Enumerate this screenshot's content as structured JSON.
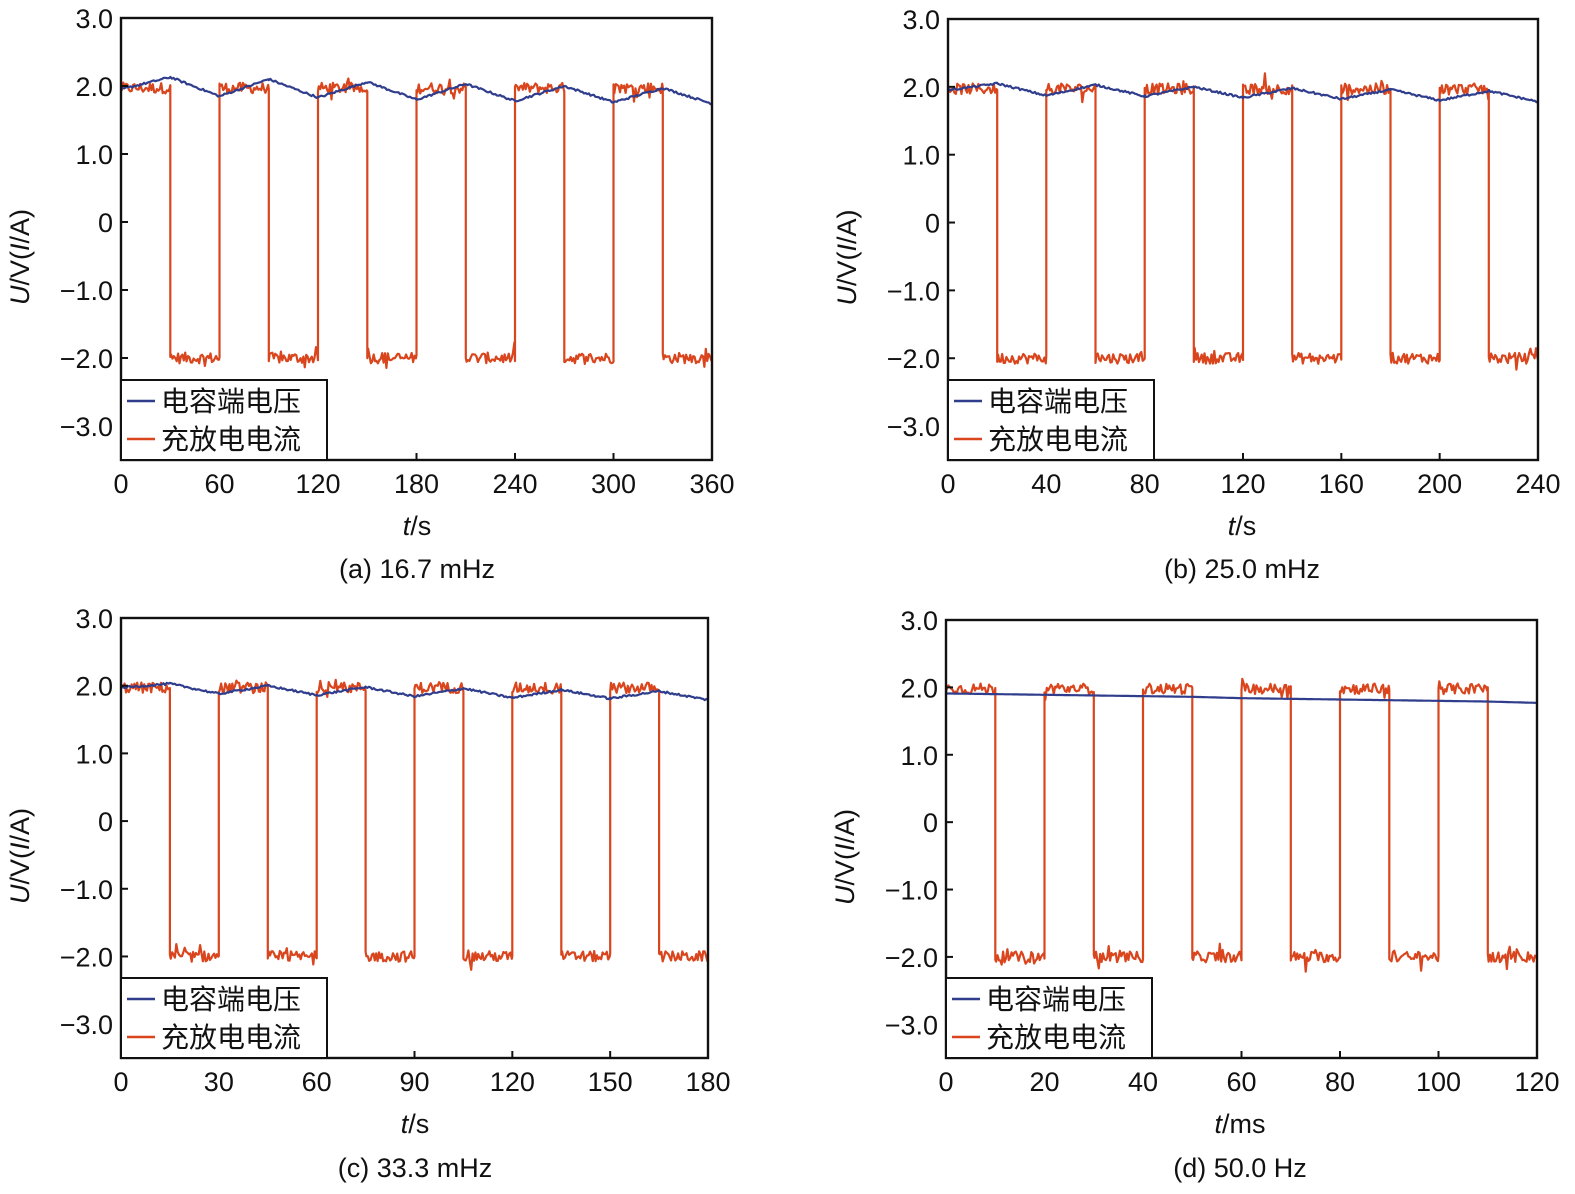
{
  "figure": {
    "colors": {
      "voltage": "#2f3d8c",
      "current": "#d9461e",
      "axis": "#111111"
    }
  },
  "chart_data": [
    {
      "type": "line",
      "panel": "a",
      "caption": "(a) 16.7 mHz",
      "xlabel_italic": "t",
      "xlabel_unit": "/s",
      "ylabel_italic_1": "U",
      "ylabel_mid": "/V(",
      "ylabel_italic_2": "I",
      "ylabel_tail": "/A)",
      "xlim": [
        0,
        360
      ],
      "ylim": [
        -3.5,
        3.0
      ],
      "xticks": [
        0,
        60,
        120,
        180,
        240,
        300,
        360
      ],
      "xtick_labels": [
        "0",
        "60",
        "120",
        "180",
        "240",
        "300",
        "360"
      ],
      "yticks": [
        3,
        2,
        1,
        0,
        -1,
        -2,
        -3
      ],
      "ytick_labels": [
        "3.0",
        "2.0",
        "1.0",
        "0",
        "−1.0",
        "−2.0",
        "−3.0"
      ],
      "legend": [
        "电容端电压",
        "充放电电流"
      ],
      "legend_position": "bottom-left",
      "series": [
        {
          "name": "电容端电压",
          "x": [
            0,
            30,
            60,
            90,
            120,
            150,
            180,
            210,
            240,
            270,
            300,
            330,
            360
          ],
          "y": [
            1.95,
            2.13,
            1.85,
            2.1,
            1.83,
            2.06,
            1.8,
            2.03,
            1.78,
            2.0,
            1.76,
            1.97,
            1.74
          ]
        },
        {
          "name": "充放电电流",
          "type": "square_wave",
          "high": 1.97,
          "low": -2.0,
          "x_start": 0,
          "x_end": 360,
          "transitions": [
            30,
            60,
            90,
            120,
            150,
            180,
            210,
            240,
            270,
            300,
            330
          ]
        }
      ]
    },
    {
      "type": "line",
      "panel": "b",
      "caption": "(b) 25.0 mHz",
      "xlabel_italic": "t",
      "xlabel_unit": "/s",
      "ylabel_italic_1": "U",
      "ylabel_mid": "/V(",
      "ylabel_italic_2": "I",
      "ylabel_tail": "/A)",
      "xlim": [
        0,
        240
      ],
      "ylim": [
        -3.5,
        3.0
      ],
      "xticks": [
        0,
        40,
        80,
        120,
        160,
        200,
        240
      ],
      "xtick_labels": [
        "0",
        "40",
        "80",
        "120",
        "160",
        "200",
        "240"
      ],
      "yticks": [
        3,
        2,
        1,
        0,
        -1,
        -2,
        -3
      ],
      "ytick_labels": [
        "3.0",
        "2.0",
        "1.0",
        "0",
        "−1.0",
        "−2.0",
        "−3.0"
      ],
      "legend": [
        "电容端电压",
        "充放电电流"
      ],
      "legend_position": "bottom-left",
      "series": [
        {
          "name": "电容端电压",
          "x": [
            0,
            20,
            40,
            60,
            80,
            100,
            120,
            140,
            160,
            180,
            200,
            220,
            240
          ],
          "y": [
            1.95,
            2.05,
            1.87,
            2.03,
            1.86,
            2.0,
            1.84,
            1.98,
            1.82,
            1.96,
            1.8,
            1.94,
            1.78
          ]
        },
        {
          "name": "充放电电流",
          "type": "square_wave",
          "high": 1.97,
          "low": -2.0,
          "x_start": 0,
          "x_end": 240,
          "transitions": [
            20,
            40,
            60,
            80,
            100,
            120,
            140,
            160,
            180,
            200,
            220
          ]
        }
      ]
    },
    {
      "type": "line",
      "panel": "c",
      "caption": "(c) 33.3 mHz",
      "xlabel_italic": "t",
      "xlabel_unit": "/s",
      "ylabel_italic_1": "U",
      "ylabel_mid": "/V(",
      "ylabel_italic_2": "I",
      "ylabel_tail": "/A)",
      "xlim": [
        0,
        180
      ],
      "ylim": [
        -3.5,
        3.0
      ],
      "xticks": [
        0,
        30,
        60,
        90,
        120,
        150,
        180
      ],
      "xtick_labels": [
        "0",
        "30",
        "60",
        "90",
        "120",
        "150",
        "180"
      ],
      "yticks": [
        3,
        2,
        1,
        0,
        -1,
        -2,
        -3
      ],
      "ytick_labels": [
        "3.0",
        "2.0",
        "1.0",
        "0",
        "−1.0",
        "−2.0",
        "−3.0"
      ],
      "legend": [
        "电容端电压",
        "充放电电流"
      ],
      "legend_position": "bottom-left",
      "series": [
        {
          "name": "电容端电压",
          "x": [
            0,
            15,
            30,
            45,
            60,
            75,
            90,
            105,
            120,
            135,
            150,
            165,
            180
          ],
          "y": [
            1.97,
            2.03,
            1.88,
            2.0,
            1.86,
            1.98,
            1.84,
            1.96,
            1.82,
            1.94,
            1.81,
            1.92,
            1.79
          ]
        },
        {
          "name": "充放电电流",
          "type": "square_wave",
          "high": 1.97,
          "low": -2.0,
          "x_start": 0,
          "x_end": 180,
          "transitions": [
            15,
            30,
            45,
            60,
            75,
            90,
            105,
            120,
            135,
            150,
            165
          ]
        }
      ]
    },
    {
      "type": "line",
      "panel": "d",
      "caption": "(d) 50.0 Hz",
      "xlabel_italic": "t",
      "xlabel_unit": "/ms",
      "ylabel_italic_1": "U",
      "ylabel_mid": "/V(",
      "ylabel_italic_2": "I",
      "ylabel_tail": "/A)",
      "xlim": [
        0,
        120
      ],
      "ylim": [
        -3.5,
        3.0
      ],
      "xticks": [
        0,
        20,
        40,
        60,
        80,
        100,
        120
      ],
      "xtick_labels": [
        "0",
        "20",
        "40",
        "60",
        "80",
        "100",
        "120"
      ],
      "yticks": [
        3,
        2,
        1,
        0,
        -1,
        -2,
        -3
      ],
      "ytick_labels": [
        "3.0",
        "2.0",
        "1.0",
        "0",
        "−1.0",
        "−2.0",
        "−3.0"
      ],
      "legend": [
        "电容端电压",
        "充放电电流"
      ],
      "legend_position": "bottom-left",
      "series": [
        {
          "name": "电容端电压",
          "x": [
            0,
            10,
            20,
            30,
            40,
            50,
            60,
            70,
            80,
            90,
            100,
            110,
            120
          ],
          "y": [
            1.91,
            1.9,
            1.89,
            1.88,
            1.87,
            1.86,
            1.84,
            1.83,
            1.82,
            1.81,
            1.8,
            1.79,
            1.77
          ]
        },
        {
          "name": "充放电电流",
          "type": "square_wave",
          "high": 1.98,
          "low": -2.0,
          "x_start": 0,
          "x_end": 120,
          "transitions": [
            10,
            20,
            30,
            40,
            50,
            60,
            70,
            80,
            90,
            100,
            110
          ]
        }
      ]
    }
  ]
}
